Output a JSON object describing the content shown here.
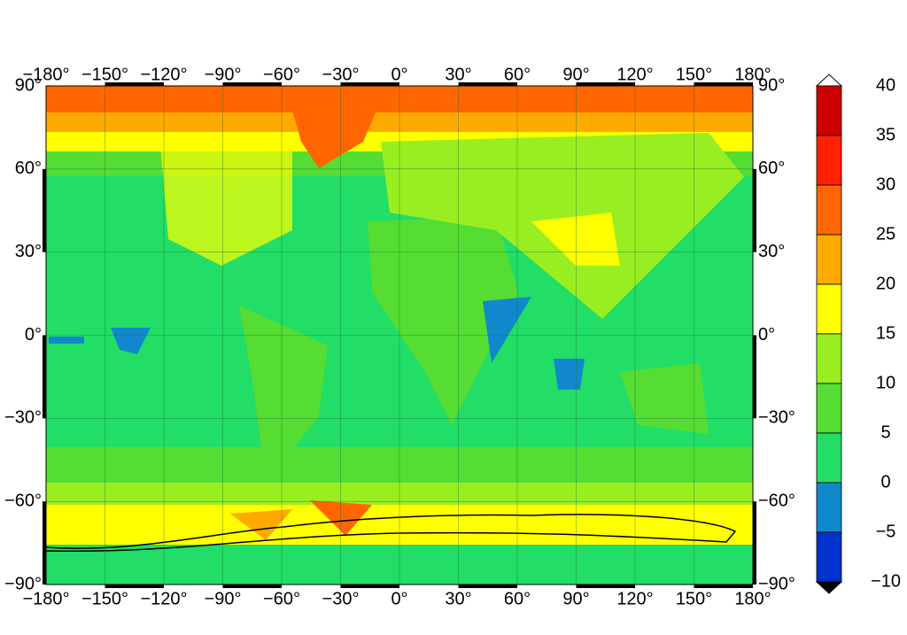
{
  "map": {
    "top_ticks": [
      "−180°",
      "−150°",
      "−120°",
      "−90°",
      "−60°",
      "−30°",
      "0°",
      "30°",
      "60°",
      "90°",
      "120°",
      "150°",
      "180°"
    ],
    "bottom_ticks": [
      "−180°",
      "−150°",
      "−120°",
      "−90°",
      "−60°",
      "−30°",
      "0°",
      "30°",
      "60°",
      "90°",
      "120°",
      "150°",
      "180°"
    ],
    "left_ticks": [
      "90°",
      "60°",
      "30°",
      "0°",
      "−30°",
      "−60°",
      "−90°"
    ],
    "right_ticks": [
      "90°",
      "60°",
      "30°",
      "0°",
      "−30°",
      "−60°",
      "−90°"
    ],
    "colorbar": {
      "labels": [
        "40",
        "35",
        "30",
        "25",
        "20",
        "15",
        "10",
        "5",
        "0",
        "−5",
        "−10"
      ],
      "colors": [
        "#cc0000",
        "#ff2200",
        "#ff6600",
        "#ffaa00",
        "#ffff00",
        "#99ee22",
        "#55dd33",
        "#22dd66",
        "#1188cc",
        "#0033cc"
      ]
    }
  }
}
